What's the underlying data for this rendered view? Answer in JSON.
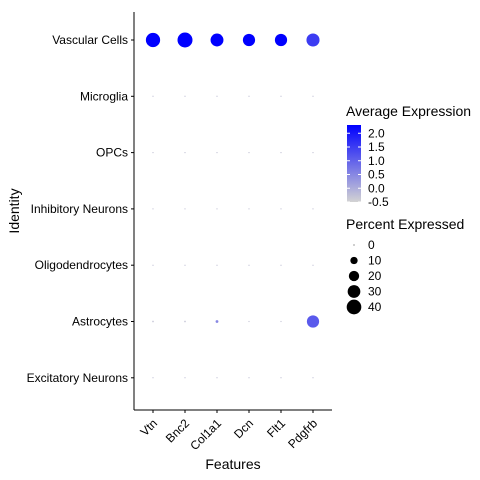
{
  "chart_data": {
    "type": "scatter",
    "subtype": "dot-plot",
    "xlabel": "Features",
    "ylabel": "Identity",
    "features": [
      "Vtn",
      "Bnc2",
      "Col1a1",
      "Dcn",
      "Flt1",
      "Pdgfrb"
    ],
    "identities": [
      "Vascular Cells",
      "Microglia",
      "OPCs",
      "Inhibitory Neurons",
      "Oligodendrocytes",
      "Astrocytes",
      "Excitatory Neurons"
    ],
    "points": [
      {
        "feature": "Vtn",
        "identity": "Vascular Cells",
        "pct": 38,
        "avg": 2.3
      },
      {
        "feature": "Bnc2",
        "identity": "Vascular Cells",
        "pct": 42,
        "avg": 2.3
      },
      {
        "feature": "Col1a1",
        "identity": "Vascular Cells",
        "pct": 31,
        "avg": 2.3
      },
      {
        "feature": "Dcn",
        "identity": "Vascular Cells",
        "pct": 28,
        "avg": 2.3
      },
      {
        "feature": "Flt1",
        "identity": "Vascular Cells",
        "pct": 28,
        "avg": 2.3
      },
      {
        "feature": "Pdgfrb",
        "identity": "Vascular Cells",
        "pct": 32,
        "avg": 1.5
      },
      {
        "feature": "Vtn",
        "identity": "Microglia",
        "pct": 0.3,
        "avg": -0.3
      },
      {
        "feature": "Bnc2",
        "identity": "Microglia",
        "pct": 0.3,
        "avg": -0.3
      },
      {
        "feature": "Col1a1",
        "identity": "Microglia",
        "pct": 0.3,
        "avg": -0.3
      },
      {
        "feature": "Dcn",
        "identity": "Microglia",
        "pct": 0.3,
        "avg": -0.3
      },
      {
        "feature": "Flt1",
        "identity": "Microglia",
        "pct": 0.3,
        "avg": -0.3
      },
      {
        "feature": "Pdgfrb",
        "identity": "Microglia",
        "pct": 0.3,
        "avg": -0.3
      },
      {
        "feature": "Vtn",
        "identity": "OPCs",
        "pct": 0.3,
        "avg": -0.3
      },
      {
        "feature": "Bnc2",
        "identity": "OPCs",
        "pct": 0.3,
        "avg": -0.3
      },
      {
        "feature": "Col1a1",
        "identity": "OPCs",
        "pct": 0.3,
        "avg": -0.3
      },
      {
        "feature": "Dcn",
        "identity": "OPCs",
        "pct": 0.3,
        "avg": -0.3
      },
      {
        "feature": "Flt1",
        "identity": "OPCs",
        "pct": 0.3,
        "avg": -0.3
      },
      {
        "feature": "Pdgfrb",
        "identity": "OPCs",
        "pct": 0.3,
        "avg": -0.3
      },
      {
        "feature": "Vtn",
        "identity": "Inhibitory Neurons",
        "pct": 0.3,
        "avg": -0.3
      },
      {
        "feature": "Bnc2",
        "identity": "Inhibitory Neurons",
        "pct": 0.3,
        "avg": -0.3
      },
      {
        "feature": "Col1a1",
        "identity": "Inhibitory Neurons",
        "pct": 0.3,
        "avg": -0.3
      },
      {
        "feature": "Dcn",
        "identity": "Inhibitory Neurons",
        "pct": 0.3,
        "avg": -0.3
      },
      {
        "feature": "Flt1",
        "identity": "Inhibitory Neurons",
        "pct": 0.3,
        "avg": -0.3
      },
      {
        "feature": "Pdgfrb",
        "identity": "Inhibitory Neurons",
        "pct": 0.3,
        "avg": -0.3
      },
      {
        "feature": "Vtn",
        "identity": "Oligodendrocytes",
        "pct": 0.3,
        "avg": -0.3
      },
      {
        "feature": "Bnc2",
        "identity": "Oligodendrocytes",
        "pct": 0.3,
        "avg": -0.3
      },
      {
        "feature": "Col1a1",
        "identity": "Oligodendrocytes",
        "pct": 0.3,
        "avg": -0.3
      },
      {
        "feature": "Dcn",
        "identity": "Oligodendrocytes",
        "pct": 0.3,
        "avg": -0.3
      },
      {
        "feature": "Flt1",
        "identity": "Oligodendrocytes",
        "pct": 0.3,
        "avg": -0.3
      },
      {
        "feature": "Pdgfrb",
        "identity": "Oligodendrocytes",
        "pct": 0.3,
        "avg": -0.3
      },
      {
        "feature": "Vtn",
        "identity": "Astrocytes",
        "pct": 0.5,
        "avg": -0.3
      },
      {
        "feature": "Bnc2",
        "identity": "Astrocytes",
        "pct": 0.5,
        "avg": -0.3
      },
      {
        "feature": "Col1a1",
        "identity": "Astrocytes",
        "pct": 1.5,
        "avg": 0.5
      },
      {
        "feature": "Dcn",
        "identity": "Astrocytes",
        "pct": 0.3,
        "avg": -0.3
      },
      {
        "feature": "Flt1",
        "identity": "Astrocytes",
        "pct": 0.3,
        "avg": -0.3
      },
      {
        "feature": "Pdgfrb",
        "identity": "Astrocytes",
        "pct": 28,
        "avg": 1.1
      },
      {
        "feature": "Vtn",
        "identity": "Excitatory Neurons",
        "pct": 0.3,
        "avg": -0.3
      },
      {
        "feature": "Bnc2",
        "identity": "Excitatory Neurons",
        "pct": 0.3,
        "avg": -0.3
      },
      {
        "feature": "Col1a1",
        "identity": "Excitatory Neurons",
        "pct": 0.3,
        "avg": -0.3
      },
      {
        "feature": "Dcn",
        "identity": "Excitatory Neurons",
        "pct": 0.3,
        "avg": -0.3
      },
      {
        "feature": "Flt1",
        "identity": "Excitatory Neurons",
        "pct": 0.3,
        "avg": -0.3
      },
      {
        "feature": "Pdgfrb",
        "identity": "Excitatory Neurons",
        "pct": 0.3,
        "avg": -0.3
      }
    ],
    "color_legend": {
      "title": "Average Expression",
      "range": [
        -0.5,
        2.3
      ],
      "ticks": [
        "2.0",
        "1.5",
        "1.0",
        "0.5",
        "0.0",
        "-0.5"
      ],
      "low_color": "#d3d3d3",
      "high_color": "#0000ff"
    },
    "size_legend": {
      "title": "Percent Expressed",
      "ticks": [
        "0",
        "10",
        "20",
        "30",
        "40"
      ],
      "max_pct": 42
    },
    "grid": false,
    "legend_position": "right"
  }
}
